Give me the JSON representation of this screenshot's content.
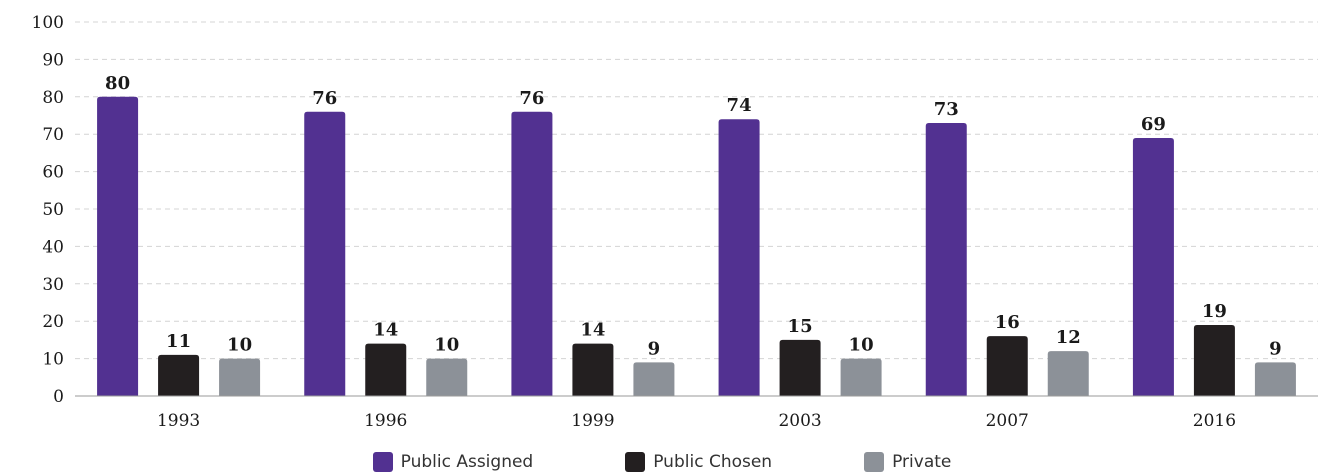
{
  "chart_data": {
    "type": "bar",
    "categories": [
      "1993",
      "1996",
      "1999",
      "2003",
      "2007",
      "2016"
    ],
    "series": [
      {
        "name": "Public Assigned",
        "color": "#523191",
        "values": [
          80,
          76,
          76,
          74,
          73,
          69
        ]
      },
      {
        "name": "Public Chosen",
        "color": "#231f20",
        "values": [
          11,
          14,
          14,
          15,
          16,
          19
        ]
      },
      {
        "name": "Private",
        "color": "#8c9198",
        "values": [
          10,
          10,
          9,
          10,
          12,
          9
        ]
      }
    ],
    "y_ticks": [
      "0",
      "10",
      "20",
      "30",
      "40",
      "50",
      "60",
      "70",
      "80",
      "90",
      "100"
    ],
    "ylim": [
      0,
      100
    ],
    "grid": true,
    "legend_position": "bottom-center",
    "title": "",
    "xlabel": "",
    "ylabel": ""
  }
}
